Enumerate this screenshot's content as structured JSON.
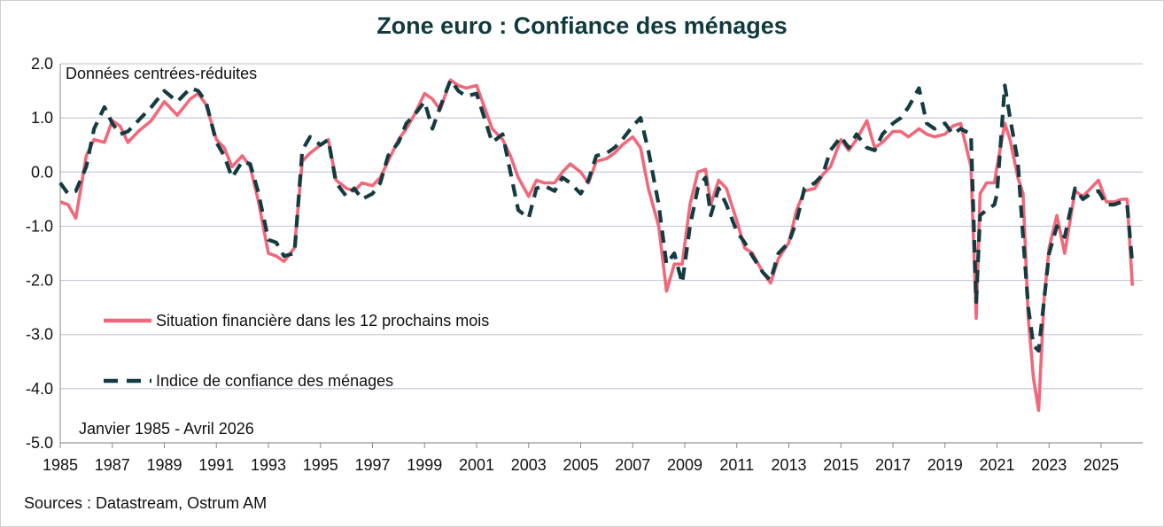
{
  "chart_data": {
    "type": "line",
    "title": "Zone euro : Confiance des ménages",
    "subtitle": "Données centrées-réduites",
    "period_note": "Janvier 1985 - Avril 2026",
    "source": "Sources : Datastream, Ostrum AM",
    "xlim": [
      1985.0,
      2026.6
    ],
    "ylim": [
      -5.0,
      2.0
    ],
    "x_ticks": [
      1985,
      1987,
      1989,
      1991,
      1993,
      1995,
      1997,
      1999,
      2001,
      2003,
      2005,
      2007,
      2009,
      2011,
      2013,
      2015,
      2017,
      2019,
      2021,
      2023,
      2025
    ],
    "x_tick_labels": [
      "1985",
      "1987",
      "1989",
      "1991",
      "1993",
      "1995",
      "1997",
      "1999",
      "2001",
      "2003",
      "2005",
      "2007",
      "2009",
      "2011",
      "2013",
      "2015",
      "2017",
      "2019",
      "2021",
      "2023",
      "2025"
    ],
    "y_ticks": [
      2.0,
      1.0,
      0.0,
      -1.0,
      -2.0,
      -3.0,
      -4.0,
      -5.0
    ],
    "y_tick_labels": [
      "2.0",
      "1.0",
      "0.0",
      "-1.0",
      "-2.0",
      "-3.0",
      "-4.0",
      "-5.0"
    ],
    "grid": "horizontal",
    "legend_position": "lower-left",
    "series": [
      {
        "name": "Situation financière dans les 12 prochains mois",
        "color": "#f0687a",
        "style": "solid",
        "x": [
          1985.0,
          1985.3,
          1985.6,
          1986.0,
          1986.3,
          1986.7,
          1987.0,
          1987.3,
          1987.6,
          1988.0,
          1988.5,
          1989.0,
          1989.5,
          1990.0,
          1990.3,
          1990.6,
          1991.0,
          1991.3,
          1991.6,
          1992.0,
          1992.3,
          1992.6,
          1993.0,
          1993.3,
          1993.6,
          1994.0,
          1994.3,
          1994.6,
          1995.0,
          1995.3,
          1995.6,
          1996.0,
          1996.3,
          1996.6,
          1997.0,
          1997.3,
          1997.6,
          1998.0,
          1998.3,
          1998.6,
          1999.0,
          1999.3,
          1999.6,
          2000.0,
          2000.3,
          2000.6,
          2001.0,
          2001.3,
          2001.6,
          2002.0,
          2002.3,
          2002.6,
          2003.0,
          2003.3,
          2003.6,
          2004.0,
          2004.3,
          2004.6,
          2005.0,
          2005.3,
          2005.6,
          2006.0,
          2006.3,
          2006.6,
          2007.0,
          2007.3,
          2007.6,
          2008.0,
          2008.3,
          2008.6,
          2008.9,
          2009.2,
          2009.5,
          2009.8,
          2010.0,
          2010.3,
          2010.6,
          2011.0,
          2011.3,
          2011.6,
          2012.0,
          2012.3,
          2012.6,
          2013.0,
          2013.3,
          2013.6,
          2014.0,
          2014.3,
          2014.6,
          2015.0,
          2015.3,
          2015.6,
          2016.0,
          2016.3,
          2016.6,
          2017.0,
          2017.3,
          2017.6,
          2018.0,
          2018.3,
          2018.6,
          2019.0,
          2019.3,
          2019.6,
          2020.0,
          2020.2,
          2020.35,
          2020.6,
          2020.9,
          2021.0,
          2021.3,
          2021.5,
          2021.8,
          2022.0,
          2022.2,
          2022.4,
          2022.6,
          2022.8,
          2023.0,
          2023.3,
          2023.6,
          2024.0,
          2024.3,
          2024.6,
          2024.9,
          2025.2,
          2025.5,
          2025.8,
          2026.0,
          2026.2
        ],
        "values": [
          -0.55,
          -0.6,
          -0.85,
          0.3,
          0.6,
          0.55,
          0.95,
          0.85,
          0.55,
          0.75,
          0.95,
          1.3,
          1.05,
          1.35,
          1.45,
          1.25,
          0.6,
          0.45,
          0.1,
          0.3,
          0.1,
          -0.5,
          -1.5,
          -1.55,
          -1.65,
          -1.4,
          0.2,
          0.35,
          0.5,
          0.6,
          -0.15,
          -0.3,
          -0.35,
          -0.2,
          -0.25,
          -0.1,
          0.2,
          0.6,
          0.8,
          1.05,
          1.45,
          1.35,
          1.15,
          1.7,
          1.6,
          1.55,
          1.6,
          1.2,
          0.8,
          0.6,
          0.3,
          -0.1,
          -0.45,
          -0.15,
          -0.2,
          -0.2,
          0.0,
          0.15,
          0.0,
          -0.2,
          0.2,
          0.25,
          0.35,
          0.5,
          0.65,
          0.45,
          -0.3,
          -1.0,
          -2.2,
          -1.7,
          -1.7,
          -0.6,
          0.0,
          0.05,
          -0.6,
          -0.15,
          -0.3,
          -0.9,
          -1.4,
          -1.5,
          -1.85,
          -2.05,
          -1.6,
          -1.3,
          -0.7,
          -0.35,
          -0.3,
          -0.05,
          0.1,
          0.6,
          0.4,
          0.6,
          0.95,
          0.45,
          0.55,
          0.75,
          0.75,
          0.65,
          0.8,
          0.7,
          0.65,
          0.7,
          0.85,
          0.9,
          0.1,
          -2.7,
          -0.4,
          -0.2,
          -0.2,
          0.1,
          0.9,
          0.6,
          -0.1,
          -0.4,
          -2.7,
          -3.8,
          -4.4,
          -2.4,
          -1.4,
          -0.8,
          -1.5,
          -0.35,
          -0.45,
          -0.3,
          -0.15,
          -0.55,
          -0.55,
          -0.5,
          -0.5,
          -2.1
        ]
      },
      {
        "name": "Indice de confiance des ménages",
        "color": "#143c40",
        "style": "dashed",
        "x": [
          1985.0,
          1985.3,
          1985.6,
          1986.0,
          1986.3,
          1986.7,
          1987.0,
          1987.3,
          1987.6,
          1988.0,
          1988.5,
          1989.0,
          1989.5,
          1990.0,
          1990.3,
          1990.6,
          1991.0,
          1991.3,
          1991.6,
          1992.0,
          1992.3,
          1992.6,
          1993.0,
          1993.3,
          1993.6,
          1994.0,
          1994.3,
          1994.6,
          1995.0,
          1995.3,
          1995.6,
          1996.0,
          1996.3,
          1996.6,
          1997.0,
          1997.3,
          1997.6,
          1998.0,
          1998.3,
          1998.6,
          1999.0,
          1999.3,
          1999.6,
          2000.0,
          2000.3,
          2000.6,
          2001.0,
          2001.3,
          2001.6,
          2002.0,
          2002.3,
          2002.6,
          2003.0,
          2003.3,
          2003.6,
          2004.0,
          2004.3,
          2004.6,
          2005.0,
          2005.3,
          2005.6,
          2006.0,
          2006.3,
          2006.6,
          2007.0,
          2007.3,
          2007.6,
          2008.0,
          2008.3,
          2008.6,
          2008.9,
          2009.2,
          2009.5,
          2009.8,
          2010.0,
          2010.3,
          2010.6,
          2011.0,
          2011.3,
          2011.6,
          2012.0,
          2012.3,
          2012.6,
          2013.0,
          2013.3,
          2013.6,
          2014.0,
          2014.3,
          2014.6,
          2015.0,
          2015.3,
          2015.6,
          2016.0,
          2016.3,
          2016.6,
          2017.0,
          2017.3,
          2017.6,
          2018.0,
          2018.3,
          2018.6,
          2019.0,
          2019.3,
          2019.6,
          2020.0,
          2020.2,
          2020.35,
          2020.6,
          2020.9,
          2021.0,
          2021.3,
          2021.5,
          2021.8,
          2022.0,
          2022.2,
          2022.4,
          2022.6,
          2022.8,
          2023.0,
          2023.3,
          2023.6,
          2024.0,
          2024.3,
          2024.6,
          2024.9,
          2025.2,
          2025.5,
          2025.8,
          2026.0,
          2026.2
        ],
        "values": [
          -0.2,
          -0.4,
          -0.35,
          0.1,
          0.8,
          1.2,
          0.9,
          0.7,
          0.75,
          0.95,
          1.2,
          1.5,
          1.3,
          1.55,
          1.5,
          1.3,
          0.55,
          0.3,
          -0.1,
          0.2,
          0.15,
          -0.35,
          -1.25,
          -1.3,
          -1.55,
          -1.5,
          0.4,
          0.65,
          0.5,
          0.6,
          -0.2,
          -0.45,
          -0.3,
          -0.5,
          -0.4,
          -0.2,
          0.3,
          0.55,
          0.9,
          1.05,
          1.3,
          0.8,
          1.2,
          1.7,
          1.5,
          1.4,
          1.45,
          1.0,
          0.55,
          0.7,
          0.0,
          -0.7,
          -0.85,
          -0.3,
          -0.25,
          -0.35,
          -0.1,
          -0.2,
          -0.4,
          -0.15,
          0.3,
          0.35,
          0.45,
          0.6,
          0.85,
          1.0,
          0.4,
          -0.6,
          -1.7,
          -1.5,
          -2.05,
          -1.0,
          -0.3,
          -0.1,
          -0.8,
          -0.3,
          -0.6,
          -1.1,
          -1.3,
          -1.55,
          -1.85,
          -2.0,
          -1.5,
          -1.3,
          -0.9,
          -0.3,
          -0.2,
          -0.05,
          0.4,
          0.65,
          0.45,
          0.7,
          0.45,
          0.4,
          0.7,
          0.9,
          1.0,
          1.2,
          1.55,
          0.9,
          0.8,
          0.9,
          0.7,
          0.8,
          0.7,
          -2.4,
          -0.8,
          -0.7,
          -0.6,
          -0.4,
          1.6,
          1.0,
          0.2,
          -1.2,
          -2.5,
          -3.2,
          -3.3,
          -2.4,
          -1.5,
          -1.0,
          -1.2,
          -0.3,
          -0.5,
          -0.4,
          -0.35,
          -0.6,
          -0.6,
          -0.55,
          -0.6,
          -1.7
        ]
      }
    ]
  }
}
